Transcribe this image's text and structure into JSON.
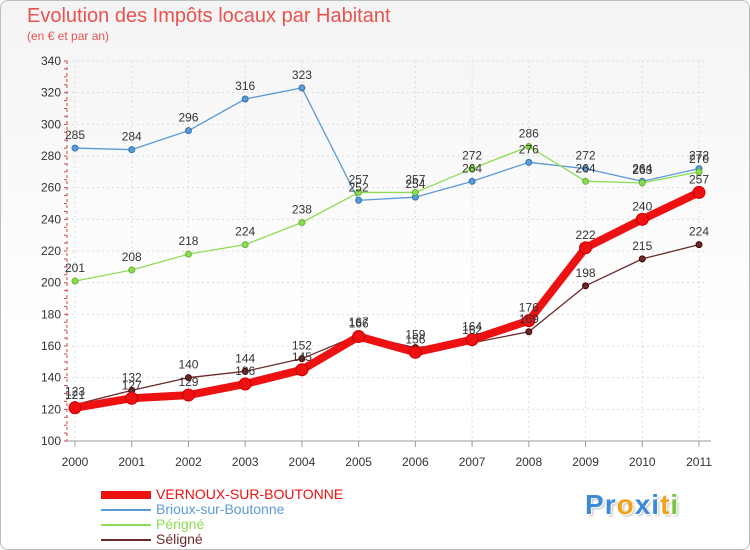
{
  "header": {
    "title": "Evolution des Impôts locaux par Habitant",
    "subtitle": "(en € et par an)"
  },
  "chart_data": {
    "type": "line",
    "title": "Evolution des Impôts locaux par Habitant",
    "subtitle": "(en € et par an)",
    "xlabel": "",
    "ylabel": "",
    "x": [
      2000,
      2001,
      2002,
      2003,
      2004,
      2005,
      2006,
      2007,
      2008,
      2009,
      2010,
      2011
    ],
    "ylim": [
      100,
      340
    ],
    "yticks": [
      100,
      120,
      140,
      160,
      180,
      200,
      220,
      240,
      260,
      280,
      300,
      320,
      340
    ],
    "grid": true,
    "legend_position": "bottom-left",
    "series": [
      {
        "name": "Brioux-sur-Boutonne",
        "color": "#5b9bd5",
        "values": [
          285,
          284,
          296,
          316,
          323,
          252,
          254,
          264,
          276,
          272,
          264,
          272
        ],
        "labels": [
          "285",
          "284",
          "296",
          "316",
          "323",
          "252",
          "254",
          "264",
          "276",
          "272",
          "264",
          "272"
        ]
      },
      {
        "name": "Périgné",
        "color": "#8edc55",
        "values": [
          201,
          208,
          218,
          224,
          238,
          257,
          257,
          272,
          286,
          264,
          263,
          270
        ],
        "labels": [
          "201",
          "208",
          "218",
          "224",
          "238",
          "257",
          "257",
          "272",
          "286",
          "264",
          "263",
          "270"
        ]
      },
      {
        "name": "Séligné",
        "color": "#6b2a2a",
        "values": [
          123,
          132,
          140,
          144,
          152,
          167,
          159,
          162,
          169,
          198,
          215,
          224
        ],
        "labels": [
          "123",
          "132",
          "140",
          "144",
          "152",
          "167",
          "159",
          "162",
          "169",
          "198",
          "215",
          "224"
        ]
      },
      {
        "name": "VERNOUX-SUR-BOUTONNE",
        "color": "#ee1111",
        "values": [
          121,
          127,
          129,
          136,
          145,
          166,
          156,
          164,
          176,
          222,
          240,
          257
        ],
        "labels": [
          "121",
          "127",
          "129",
          "136",
          "145",
          "166",
          "156",
          "164",
          "176",
          "222",
          "240",
          "257"
        ]
      }
    ]
  },
  "legend": [
    {
      "label": "VERNOUX-SUR-BOUTONNE",
      "color": "#ee1111",
      "thick": true
    },
    {
      "label": "Brioux-sur-Boutonne",
      "color": "#5b9bd5",
      "thick": false
    },
    {
      "label": "Périgné",
      "color": "#8edc55",
      "thick": false
    },
    {
      "label": "Séligné",
      "color": "#6b2a2a",
      "thick": false
    }
  ],
  "logo": {
    "text": "Proxiti",
    "letters": [
      {
        "ch": "P",
        "color": "#3c8ad8"
      },
      {
        "ch": "r",
        "color": "#3c8ad8"
      },
      {
        "ch": "o",
        "color": "#f2a21a"
      },
      {
        "ch": "x",
        "color": "#3c8ad8"
      },
      {
        "ch": "i",
        "color": "#3c8ad8"
      },
      {
        "ch": "t",
        "color": "#f2a21a"
      },
      {
        "ch": "i",
        "color": "#7cc243"
      }
    ]
  }
}
